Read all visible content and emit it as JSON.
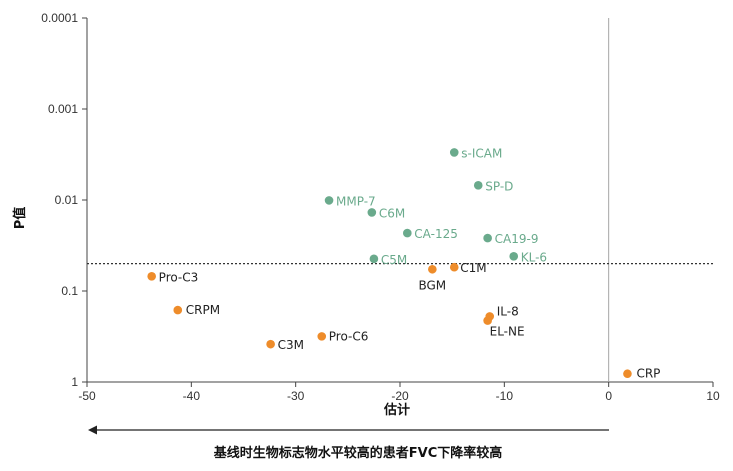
{
  "chart_data": {
    "type": "scatter",
    "xlabel": "估计",
    "ylabel": "P值",
    "xlim": [
      -50,
      10
    ],
    "ylim": [
      1,
      0.0001
    ],
    "y_scale": "log",
    "y_reversed": true,
    "grid": false,
    "x_ticks": [
      "-50",
      "-40",
      "-30",
      "-20",
      "-10",
      "0",
      "10"
    ],
    "y_ticks": [
      "0.0001",
      "0.001",
      "0.01",
      "0.1",
      "1"
    ],
    "x_tick_values": [
      -50,
      -40,
      -30,
      -20,
      -10,
      0,
      10
    ],
    "y_tick_values": [
      0.0001,
      0.001,
      0.01,
      0.1,
      1
    ],
    "significance_line_p": 0.05,
    "zero_line_x": 0,
    "footer_arrow_text": "基线时生物标志物水平较高的患者FVC下降率较高",
    "colors": {
      "significant": "#6aaa8c",
      "not_significant": "#ee8c2a"
    },
    "series": [
      {
        "color": "#6aaa8c",
        "points": [
          {
            "label": "s-ICAM",
            "x": -14.8,
            "y": 0.003
          },
          {
            "label": "SP-D",
            "x": -12.5,
            "y": 0.0069
          },
          {
            "label": "MMP-7",
            "x": -26.8,
            "y": 0.0101
          },
          {
            "label": "C6M",
            "x": -22.7,
            "y": 0.0137
          },
          {
            "label": "CA-125",
            "x": -19.3,
            "y": 0.0231
          },
          {
            "label": "CA19-9",
            "x": -11.6,
            "y": 0.0262
          },
          {
            "label": "C5M",
            "x": -22.5,
            "y": 0.0443
          },
          {
            "label": "KL-6",
            "x": -9.1,
            "y": 0.0416
          }
        ]
      },
      {
        "color": "#ee8c2a",
        "points": [
          {
            "label": "Pro-C3",
            "x": -43.8,
            "y": 0.0689
          },
          {
            "label": "C1M",
            "x": -14.8,
            "y": 0.0548
          },
          {
            "label": "BGM",
            "x": -16.9,
            "y": 0.0577
          },
          {
            "label": "CRPM",
            "x": -41.3,
            "y": 0.162
          },
          {
            "label": "IL-8",
            "x": -11.4,
            "y": 0.19
          },
          {
            "label": "EL-NE",
            "x": -11.6,
            "y": 0.2113
          },
          {
            "label": "Pro-C6",
            "x": -27.5,
            "y": 0.3152
          },
          {
            "label": "C3M",
            "x": -32.4,
            "y": 0.3837
          },
          {
            "label": "CRP",
            "x": 1.8,
            "y": 0.8112
          }
        ]
      }
    ]
  }
}
